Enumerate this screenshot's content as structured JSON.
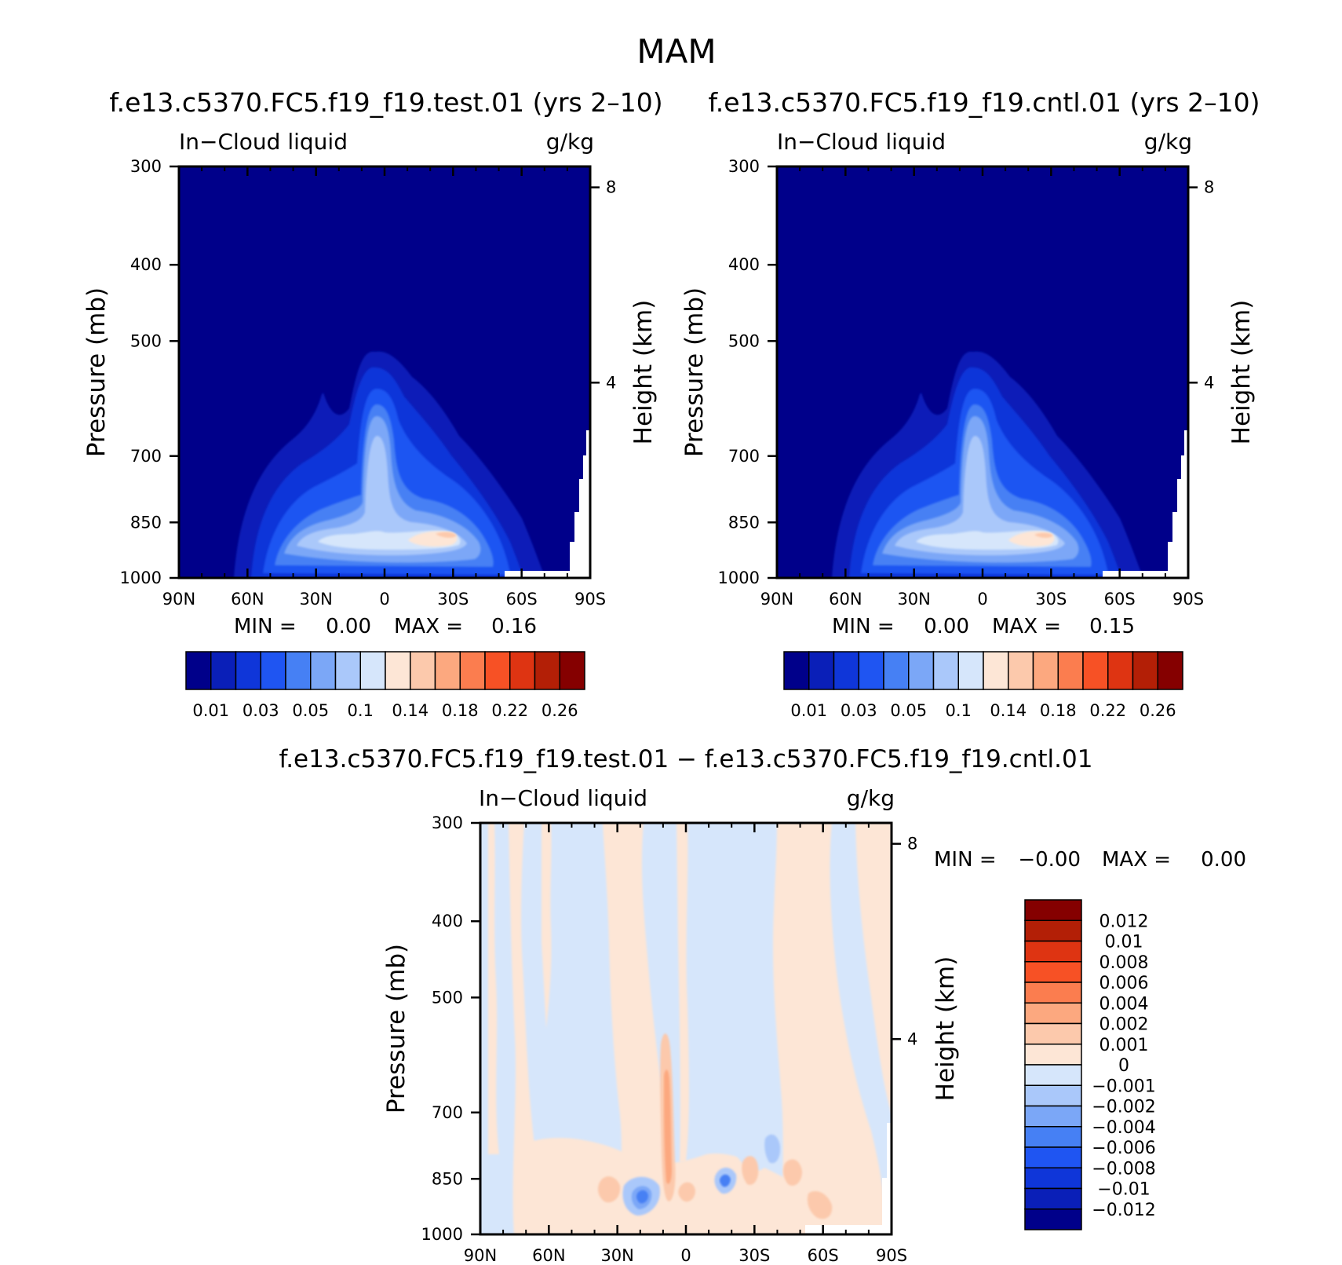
{
  "figure": {
    "season_title": "MAM"
  },
  "chart_data": [
    {
      "type": "contour",
      "id": "test",
      "title": "f.e13.c5370.FC5.f19_f19.test.01 (yrs 2–10)",
      "variable_label": "In−Cloud liquid",
      "units_label": "g/kg",
      "xlabel": "",
      "ylabel": "Pressure (mb)",
      "ylabel_right": "Height (km)",
      "x_ticks": [
        "90N",
        "60N",
        "30N",
        "0",
        "30S",
        "60S",
        "90S"
      ],
      "y_ticks": [
        "300",
        "400",
        "500",
        "700",
        "850",
        "1000"
      ],
      "y_right_ticks": [
        "8",
        "4"
      ],
      "ylim": [
        1000,
        300
      ],
      "min_label": "MIN =",
      "min_value": "0.00",
      "max_label": "MAX =",
      "max_value": "0.16",
      "colorbar_labels": [
        "0.01",
        "0.03",
        "0.05",
        "0.1",
        "0.14",
        "0.18",
        "0.22",
        "0.26"
      ],
      "colorbar_colors": [
        "#00008a",
        "#0a1fb8",
        "#0f36d9",
        "#1f55f2",
        "#4680f4",
        "#7ba7f7",
        "#aac8fa",
        "#d6e6fb",
        "#fde6d6",
        "#fcc9ac",
        "#fca87f",
        "#fb7d4f",
        "#f75125",
        "#de3412",
        "#b31f06",
        "#850000"
      ]
    },
    {
      "type": "contour",
      "id": "cntl",
      "title": "f.e13.c5370.FC5.f19_f19.cntl.01 (yrs 2–10)",
      "variable_label": "In−Cloud liquid",
      "units_label": "g/kg",
      "xlabel": "",
      "ylabel": "Pressure (mb)",
      "ylabel_right": "Height (km)",
      "x_ticks": [
        "90N",
        "60N",
        "30N",
        "0",
        "30S",
        "60S",
        "90S"
      ],
      "y_ticks": [
        "300",
        "400",
        "500",
        "700",
        "850",
        "1000"
      ],
      "y_right_ticks": [
        "8",
        "4"
      ],
      "ylim": [
        1000,
        300
      ],
      "min_label": "MIN =",
      "min_value": "0.00",
      "max_label": "MAX =",
      "max_value": "0.15",
      "colorbar_labels": [
        "0.01",
        "0.03",
        "0.05",
        "0.1",
        "0.14",
        "0.18",
        "0.22",
        "0.26"
      ],
      "colorbar_colors": [
        "#00008a",
        "#0a1fb8",
        "#0f36d9",
        "#1f55f2",
        "#4680f4",
        "#7ba7f7",
        "#aac8fa",
        "#d6e6fb",
        "#fde6d6",
        "#fcc9ac",
        "#fca87f",
        "#fb7d4f",
        "#f75125",
        "#de3412",
        "#b31f06",
        "#850000"
      ]
    },
    {
      "type": "contour",
      "id": "diff",
      "title": "f.e13.c5370.FC5.f19_f19.test.01 − f.e13.c5370.FC5.f19_f19.cntl.01",
      "variable_label": "In−Cloud liquid",
      "units_label": "g/kg",
      "xlabel": "",
      "ylabel": "Pressure (mb)",
      "ylabel_right": "Height (km)",
      "x_ticks": [
        "90N",
        "60N",
        "30N",
        "0",
        "30S",
        "60S",
        "90S"
      ],
      "y_ticks": [
        "300",
        "400",
        "500",
        "700",
        "850",
        "1000"
      ],
      "y_right_ticks": [
        "8",
        "4"
      ],
      "ylim": [
        1000,
        300
      ],
      "min_label": "MIN =",
      "min_value": "−0.00",
      "max_label": "MAX =",
      "max_value": "0.00",
      "colorbar_labels": [
        "0.012",
        "0.01",
        "0.008",
        "0.006",
        "0.004",
        "0.002",
        "0.001",
        "0",
        "−0.001",
        "−0.002",
        "−0.004",
        "−0.006",
        "−0.008",
        "−0.01",
        "−0.012"
      ],
      "colorbar_colors": [
        "#850000",
        "#b31f06",
        "#de3412",
        "#f75125",
        "#fb7d4f",
        "#fca87f",
        "#fcc9ac",
        "#fde6d6",
        "#d6e6fb",
        "#aac8fa",
        "#7ba7f7",
        "#4680f4",
        "#1f55f2",
        "#0f36d9",
        "#0a1fb8",
        "#00008a"
      ]
    }
  ]
}
